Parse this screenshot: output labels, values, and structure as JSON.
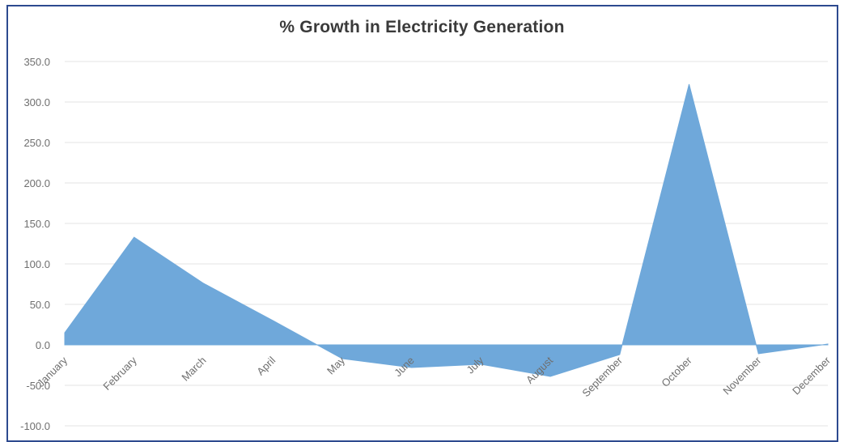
{
  "chart_data": {
    "type": "area",
    "title": "% Growth in Electricity Generation",
    "xlabel": "",
    "ylabel": "",
    "categories": [
      "January",
      "February",
      "March",
      "April",
      "May",
      "June",
      "July",
      "August",
      "September",
      "October",
      "November",
      "December"
    ],
    "series": [
      {
        "values": [
          15.0,
          133.0,
          76.0,
          30.0,
          -17.0,
          -28.0,
          -24.0,
          -39.0,
          -12.0,
          322.0,
          -11.0,
          1.0
        ]
      }
    ],
    "ylim": [
      -100,
      350
    ],
    "yticks": [
      350.0,
      300.0,
      250.0,
      200.0,
      150.0,
      100.0,
      50.0,
      0.0,
      -50.0,
      -100.0
    ],
    "ytick_labels": [
      "350.0",
      "300.0",
      "250.0",
      "200.0",
      "150.0",
      "100.0",
      "50.0",
      "0.0",
      "-50.0",
      "-100.0"
    ],
    "grid": true,
    "legend": "none",
    "colors": {
      "area": "#6fa8da",
      "grid": "#e3e3e3",
      "frame": "#2d4a8f",
      "title": "#3a3a3a",
      "labels": "#6f6f6f"
    }
  }
}
